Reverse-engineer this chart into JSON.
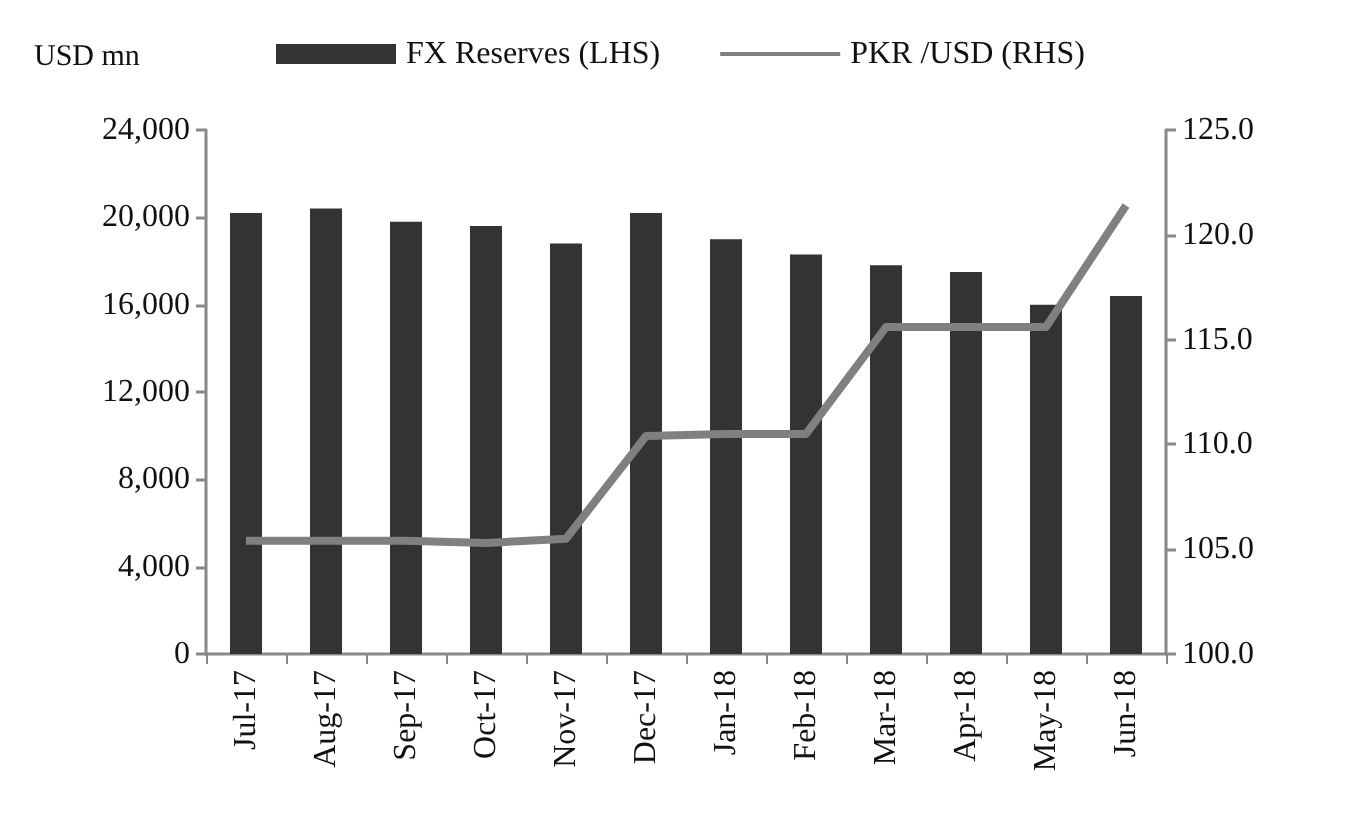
{
  "chart_data": {
    "type": "bar",
    "ylabel": "USD mn",
    "categories": [
      "Jul-17",
      "Aug-17",
      "Sep-17",
      "Oct-17",
      "Nov-17",
      "Dec-17",
      "Jan-18",
      "Feb-18",
      "Mar-18",
      "Apr-18",
      "May-18",
      "Jun-18"
    ],
    "series": [
      {
        "name": "FX Reserves (LHS)",
        "color": "#333333",
        "values": [
          20200,
          20400,
          19800,
          19600,
          18800,
          20200,
          19000,
          18300,
          17800,
          17500,
          16000,
          16400
        ]
      },
      {
        "name": "PKR /USD (RHS)",
        "type": "line",
        "axis": "y2",
        "color": "#808080",
        "values": [
          105.4,
          105.4,
          105.4,
          105.3,
          105.5,
          110.4,
          110.5,
          110.5,
          115.6,
          115.6,
          115.6,
          121.4
        ]
      }
    ],
    "ylim": [
      0,
      24000
    ],
    "yticks": [
      0,
      {
        "value": 4000,
        "label": "4,000"
      },
      {
        "value": 8000,
        "label": "8,000"
      },
      {
        "value": 12000,
        "label": "12,000"
      },
      {
        "value": 16000,
        "label": "16,000"
      },
      {
        "value": 20000,
        "label": "20,000"
      },
      {
        "value": 24000,
        "label": "24,000"
      }
    ],
    "y2lim": [
      100,
      125
    ],
    "y2ticks": [
      {
        "value": 100,
        "label": "100.0"
      },
      {
        "value": 105,
        "label": "105.0"
      },
      {
        "value": 110,
        "label": "110.0"
      },
      {
        "value": 115,
        "label": "115.0"
      },
      {
        "value": 120,
        "label": "120.0"
      },
      {
        "value": 125,
        "label": "125.0"
      }
    ],
    "legend": "top",
    "grid": false,
    "marker": "none"
  }
}
